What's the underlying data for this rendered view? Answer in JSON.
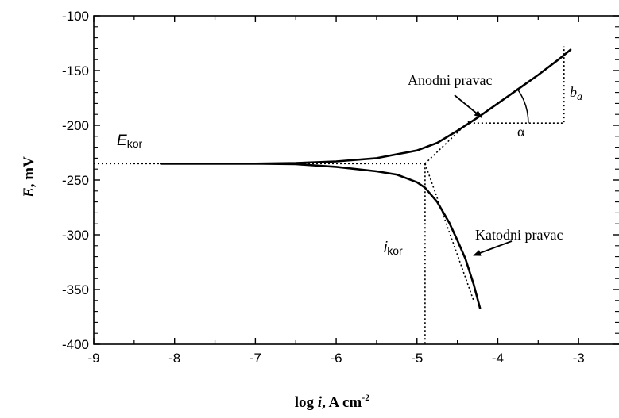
{
  "chart_data": {
    "type": "line",
    "title": "",
    "xlabel": {
      "pre": "log ",
      "var": "i",
      "post": ", A cm",
      "sup": "-2"
    },
    "ylabel": {
      "var": "E",
      "post": ", mV"
    },
    "xlim": [
      -9,
      -2.5
    ],
    "ylim": [
      -400,
      -100
    ],
    "xticks": [
      -9,
      -8,
      -7,
      -6,
      -5,
      -4,
      -3
    ],
    "yticks": [
      -100,
      -150,
      -200,
      -250,
      -300,
      -350,
      -400
    ],
    "grid": false,
    "series": [
      {
        "name": "Anodni pravac",
        "style": "solid",
        "x": [
          -8.17,
          -7.5,
          -7.0,
          -6.5,
          -6.0,
          -5.5,
          -5.0,
          -4.75,
          -4.5,
          -4.25,
          -4.0,
          -3.75,
          -3.5,
          -3.25,
          -3.1
        ],
        "y": [
          -235,
          -235,
          -235,
          -234.5,
          -233,
          -230,
          -223,
          -216,
          -205,
          -193,
          -180,
          -167,
          -154,
          -140,
          -131
        ]
      },
      {
        "name": "Katodni pravac",
        "style": "solid",
        "x": [
          -8.17,
          -7.5,
          -7.0,
          -6.5,
          -6.0,
          -5.5,
          -5.25,
          -5.0,
          -4.9,
          -4.75,
          -4.6,
          -4.5,
          -4.4,
          -4.3,
          -4.22
        ],
        "y": [
          -235,
          -235,
          -235,
          -235.5,
          -238,
          -242,
          -245,
          -252,
          -257,
          -270,
          -289,
          -305,
          -322,
          -345,
          -367
        ]
      },
      {
        "name": "",
        "style": "dotted",
        "x": [
          -9,
          -4.9
        ],
        "y": [
          -235,
          -235
        ]
      },
      {
        "name": "",
        "style": "dotted",
        "x": [
          -4.9,
          -4.35
        ],
        "y": [
          -235,
          -196
        ]
      },
      {
        "name": "",
        "style": "dotted",
        "x": [
          -4.9,
          -4.3
        ],
        "y": [
          -235,
          -360
        ]
      },
      {
        "name": "",
        "style": "dotted",
        "x": [
          -4.9,
          -4.9
        ],
        "y": [
          -235,
          -400
        ]
      },
      {
        "name": "",
        "style": "dotted",
        "x": [
          -4.35,
          -3.18,
          -3.18
        ],
        "y": [
          -198,
          -198,
          -128
        ]
      }
    ],
    "annotations": {
      "anodni": "Anodni pravac",
      "katodni": "Katodni pravac",
      "ekor": {
        "main": "E",
        "sub": "kor"
      },
      "ikor": {
        "main": "i",
        "sub": "kor"
      },
      "alpha": "α",
      "ba": {
        "main": "b",
        "sub": "a"
      }
    }
  }
}
